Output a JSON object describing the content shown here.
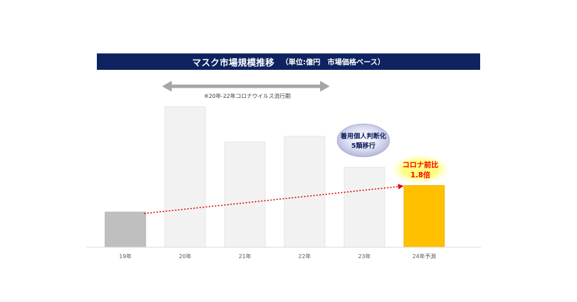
{
  "header": {
    "title": "マスク市場規模推移",
    "subtitle": "（単位:億円　市場価格ベース）"
  },
  "annotations": {
    "covid_period": "※20年-22年コロナウイルス流行期",
    "bubble_line1": "着用個人判断化",
    "bubble_line2": "5類移行",
    "callout_line1": "コロナ前比",
    "callout_line2": "1.8倍"
  },
  "colors": {
    "title_bg": "#0f2360",
    "pre_covid_bar": "#bfbfbf",
    "covid_bar": "#f2f2f2",
    "forecast_bar": "#ffc000",
    "trend_line": "#e00000",
    "arrow": "#a6a6a6",
    "callout_text": "#ff0000",
    "bubble_fill": "#b4b8dc"
  },
  "chart_data": {
    "type": "bar",
    "title": "マスク市場規模推移",
    "subtitle": "（単位:億円　市場価格ベース）",
    "categories": [
      "19年",
      "20年",
      "21年",
      "22年",
      "23年",
      "24年予測"
    ],
    "values": [
      25,
      100,
      75,
      79,
      57,
      44
    ],
    "unit": "億円",
    "y_axis_labels_shown": false,
    "grid": false,
    "trend_line": {
      "from": "19年",
      "to": "24年予測",
      "style": "dotted-arrow"
    },
    "period_arrow": {
      "from": "20年",
      "to": "22年"
    }
  }
}
